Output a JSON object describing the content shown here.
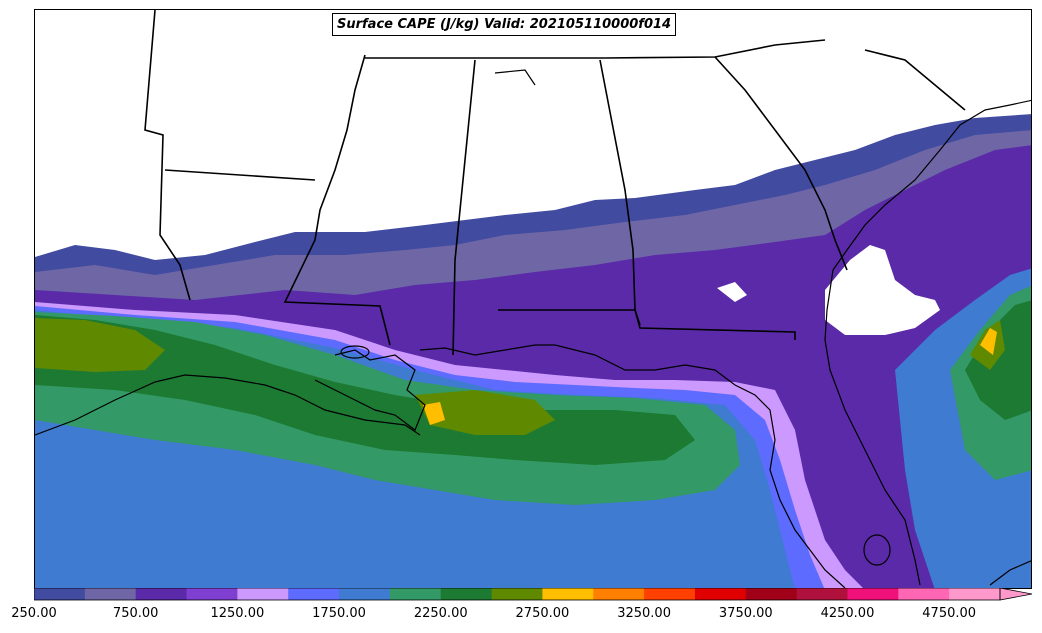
{
  "title": "Surface CAPE (J/kg) Valid: 202105110000f014",
  "colorbar": {
    "levels": [
      250,
      500,
      750,
      1000,
      1250,
      1500,
      1750,
      2000,
      2250,
      2500,
      2750,
      3000,
      3250,
      3500,
      3750,
      4000,
      4250,
      4500,
      4750,
      5000
    ],
    "colors": [
      "#414ba0",
      "#6f66a6",
      "#5a2aa8",
      "#7f3fd0",
      "#cc99ff",
      "#5d6bff",
      "#3f7bd0",
      "#339966",
      "#1c7a32",
      "#5f8a00",
      "#ffbf00",
      "#ff8000",
      "#ff4000",
      "#e00000",
      "#a00018",
      "#b0103c",
      "#f0107a",
      "#ff66b3",
      "#ff99cc"
    ],
    "tick_labels": [
      "250.00",
      "750.00",
      "1250.00",
      "1750.00",
      "2250.00",
      "2750.00",
      "3250.00",
      "3750.00",
      "4250.00",
      "4750.00"
    ],
    "extend": "max"
  }
}
